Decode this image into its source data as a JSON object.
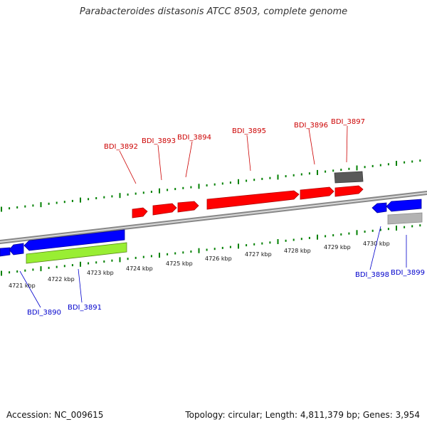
{
  "title": "Parabacteroides distasonis ATCC 8503, complete genome",
  "footer": {
    "accession": "Accession: NC_009615",
    "summary": "Topology: circular; Length: 4,811,379 bp; Genes: 3,954"
  },
  "colors": {
    "forward_gene": "#ff0000",
    "reverse_gene": "#0000ff",
    "forward_label": "#cc0000",
    "reverse_label": "#0000cc",
    "rna_dark": "#595959",
    "rna_light": "#b3b3b3",
    "highlight": "#99ee33",
    "tick": "#008000",
    "backbone": "#888888"
  },
  "kbp_labels": [
    "4721 kbp",
    "4722 kbp",
    "4723 kbp",
    "4724 kbp",
    "4725 kbp",
    "4726 kbp",
    "4727 kbp",
    "4728 kbp",
    "4729 kbp",
    "4730 kbp"
  ],
  "genes_forward": [
    "BDI_3892",
    "BDI_3893",
    "BDI_3894",
    "BDI_3895",
    "BDI_3896",
    "BDI_3897"
  ],
  "genes_reverse": [
    "BDI_3890",
    "BDI_3891",
    "BDI_3898",
    "BDI_3899"
  ]
}
